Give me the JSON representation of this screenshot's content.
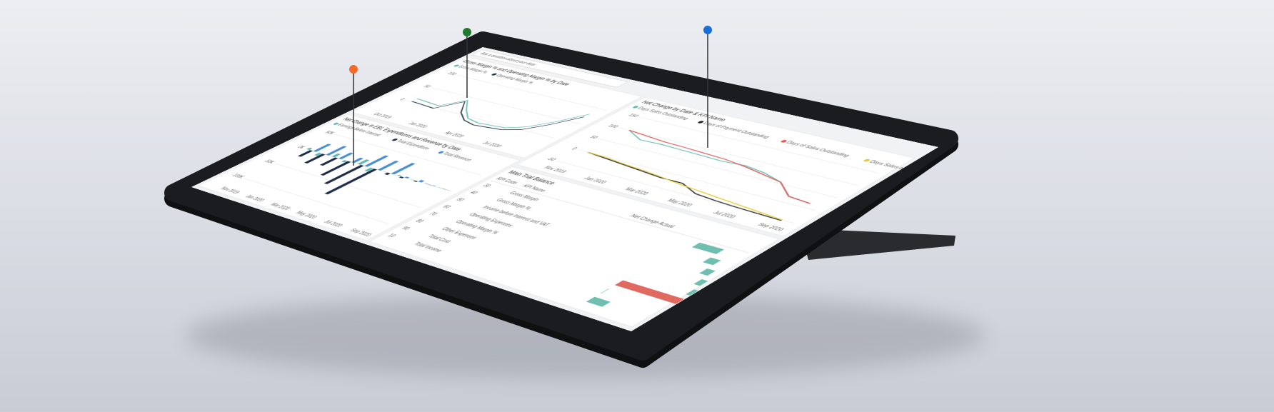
{
  "dashboard": {
    "search": "Ask a question about your data",
    "margin_chart": {
      "title": "Gross Margin % and Operating Margin % by Date",
      "x": [
        "Oct 2019",
        null,
        null,
        "Jan 2020",
        null,
        null,
        "Apr 2020",
        null,
        null,
        "Jul 2020",
        null,
        null
      ],
      "ylim": [
        -40,
        110
      ],
      "yticks": [
        0,
        50,
        100
      ],
      "series": [
        {
          "name": "Gross Margin %",
          "color": "#5fb8b0",
          "values": [
            12,
            10,
            8,
            40,
            15,
            -5,
            -10,
            -8,
            -5,
            10,
            40,
            80
          ]
        },
        {
          "name": "Operating Margin %",
          "color": "#1f2d4a",
          "values": [
            2,
            0,
            -2,
            35,
            5,
            -12,
            -18,
            -15,
            -12,
            0,
            30,
            70
          ]
        }
      ]
    },
    "kpi_chart": {
      "title": "Net Change by Date & KPI Name",
      "x": [
        "Nov 2019",
        null,
        "Jan 2020",
        null,
        "Mar 2020",
        null,
        "May 2020",
        null,
        "Jul 2020",
        null,
        "Sep 2020"
      ],
      "ylim": [
        -60,
        160
      ],
      "yticks": [
        -50,
        0,
        50,
        100,
        150
      ],
      "series": [
        {
          "name": "Days Sales Outstanding",
          "color": "#5fb8b0",
          "values": [
            100,
            78,
            80,
            78,
            76,
            74,
            78,
            70,
            55,
            20,
            15
          ]
        },
        {
          "name": "Days of Payment Outstanding",
          "color": "#222222",
          "values": [
            0,
            -5,
            -10,
            -15,
            -20,
            -20,
            -40,
            -45,
            -48,
            -50,
            -52
          ]
        },
        {
          "name": "Days of Sales Outstanding",
          "color": "#e0574f",
          "values": [
            100,
            95,
            90,
            88,
            85,
            82,
            75,
            65,
            55,
            20,
            15
          ]
        },
        {
          "name": "Days Sales of Inventory",
          "color": "#e8c92e",
          "values": [
            0,
            -2,
            -8,
            -12,
            -18,
            -25,
            -30,
            -35,
            -40,
            -45,
            -50
          ]
        }
      ]
    },
    "ebi_chart": {
      "title": "Net Change in EBI, Expenditures and Revenue by Date",
      "x": [
        "Nov 2019",
        null,
        "Jan 2020",
        null,
        "Mar 2020",
        null,
        "May 2020",
        null,
        "Jul 2020",
        null,
        "Sep 2020"
      ],
      "ylim": [
        -120000,
        60000
      ],
      "yticks": [
        {
          "value": -100000,
          "label": "-100K"
        },
        {
          "value": -50000,
          "label": "-50K"
        },
        {
          "value": 0,
          "label": "0K"
        },
        {
          "value": 50000,
          "label": "50K"
        }
      ],
      "series": [
        {
          "name": "Earnings Before Interest",
          "color": "#5fb8b0",
          "values": [
            5000,
            -8000,
            10000,
            -5000,
            15000,
            -10000,
            0,
            2000,
            0,
            1000,
            0
          ]
        },
        {
          "name": "Total Expenditure",
          "color": "#1f2d4a",
          "values": [
            -20000,
            -30000,
            -25000,
            -45000,
            -60000,
            -80000,
            -5000,
            -3000,
            -2000,
            0,
            0
          ]
        },
        {
          "name": "Total Revenue",
          "color": "#4a8fd6",
          "values": [
            25000,
            30000,
            20000,
            15000,
            35000,
            30000,
            35000,
            3000,
            5000,
            1000,
            0
          ]
        }
      ]
    },
    "trial_balance": {
      "title": "Main Trial Balance",
      "columns": [
        "KPI Code",
        "KPI Name",
        "Net Change Actual"
      ],
      "codes": [
        30,
        40,
        50,
        60,
        70,
        80,
        90,
        10
      ],
      "names": [
        "Gross Margin",
        "Gross Margin %",
        "Income before Interest and VAT",
        "Operating Expenses",
        "Operating Margin %",
        "Other Expenses",
        "Total Cost",
        "Total Income"
      ],
      "values": [
        12000,
        5000,
        4000,
        3000,
        2000,
        -30000,
        0,
        8000
      ],
      "xlim": [
        -40000,
        20000
      ],
      "pos_color": "#6fbfb0",
      "neg_color": "#e06a5f"
    }
  }
}
